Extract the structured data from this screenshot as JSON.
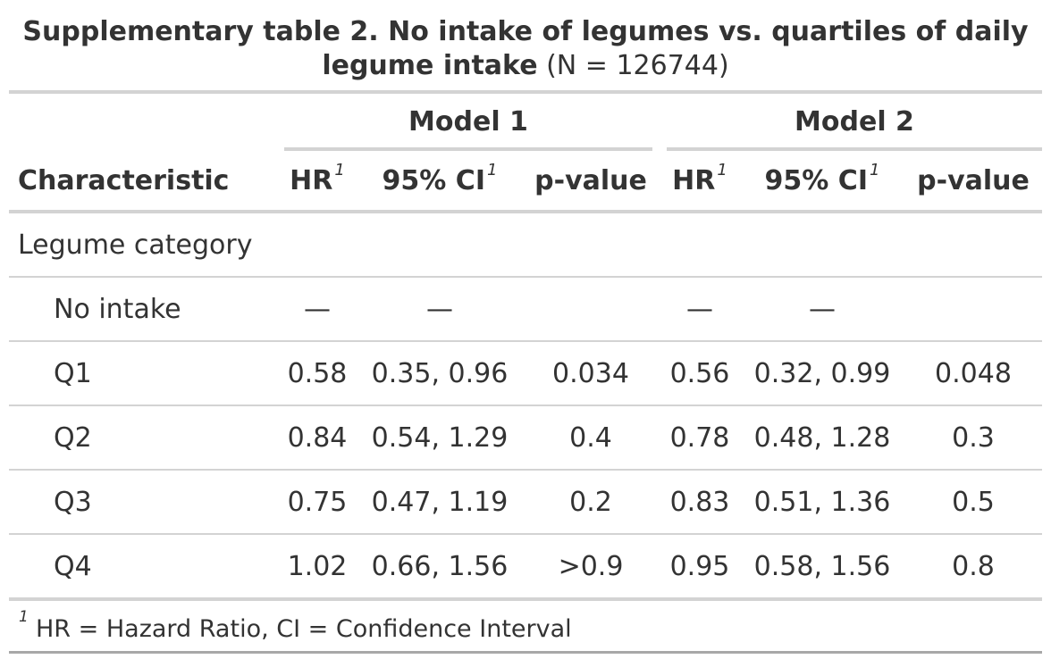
{
  "title": {
    "bold": "Supplementary table 2. No intake of legumes vs. quartiles of daily legume intake",
    "normal": "(N = 126744)"
  },
  "spanners": {
    "model1": "Model 1",
    "model2": "Model 2"
  },
  "columns": {
    "characteristic": "Characteristic",
    "hr": "HR",
    "ci": "95% CI",
    "pvalue": "p-value",
    "footnote_mark": "1"
  },
  "rows": [
    {
      "label": "Legume category",
      "indent": false,
      "hr1": "",
      "ci1": "",
      "p1": "",
      "hr2": "",
      "ci2": "",
      "p2": ""
    },
    {
      "label": "No intake",
      "indent": true,
      "hr1": "—",
      "ci1": "—",
      "p1": "",
      "hr2": "—",
      "ci2": "—",
      "p2": ""
    },
    {
      "label": "Q1",
      "indent": true,
      "hr1": "0.58",
      "ci1": "0.35, 0.96",
      "p1": "0.034",
      "hr2": "0.56",
      "ci2": "0.32, 0.99",
      "p2": "0.048"
    },
    {
      "label": "Q2",
      "indent": true,
      "hr1": "0.84",
      "ci1": "0.54, 1.29",
      "p1": "0.4",
      "hr2": "0.78",
      "ci2": "0.48, 1.28",
      "p2": "0.3"
    },
    {
      "label": "Q3",
      "indent": true,
      "hr1": "0.75",
      "ci1": "0.47, 1.19",
      "p1": "0.2",
      "hr2": "0.83",
      "ci2": "0.51, 1.36",
      "p2": "0.5"
    },
    {
      "label": "Q4",
      "indent": true,
      "hr1": "1.02",
      "ci1": "0.66, 1.56",
      "p1": ">0.9",
      "hr2": "0.95",
      "ci2": "0.58, 1.56",
      "p2": "0.8"
    }
  ],
  "footnote": {
    "mark": "1",
    "text": "HR = Hazard Ratio, CI = Confidence Interval"
  }
}
